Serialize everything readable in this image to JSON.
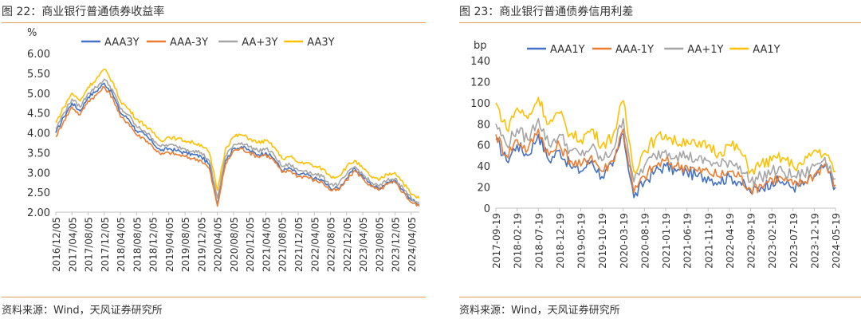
{
  "figures": [
    {
      "title": "图 22：商业银行普通债券收益率",
      "source": "资料来源：Wind，天风证券研究所"
    },
    {
      "title": "图 23：商业银行普通债券信用利差",
      "source": "资料来源：Wind，天风证券研究所"
    }
  ],
  "chart_data": [
    {
      "type": "line",
      "unit_label": "%",
      "ylim": [
        2.0,
        6.0
      ],
      "yticks": [
        "6.00",
        "5.50",
        "5.00",
        "4.50",
        "4.00",
        "3.50",
        "3.00",
        "2.50",
        "2.00"
      ],
      "grid": false,
      "legend_position": "top",
      "x": [
        "2016/12/05",
        "2017/02/05",
        "2017/04/05",
        "2017/06/05",
        "2017/08/05",
        "2017/10/05",
        "2017/12/05",
        "2018/02/05",
        "2018/04/05",
        "2018/06/05",
        "2018/08/05",
        "2018/10/05",
        "2018/12/05",
        "2019/02/05",
        "2019/04/05",
        "2019/06/05",
        "2019/08/05",
        "2019/10/05",
        "2019/12/05",
        "2020/02/05",
        "2020/04/05",
        "2020/06/05",
        "2020/08/05",
        "2020/10/05",
        "2020/12/05",
        "2021/02/05",
        "2021/04/05",
        "2021/06/05",
        "2021/08/05",
        "2021/10/05",
        "2021/12/05",
        "2022/02/05",
        "2022/04/05",
        "2022/06/05",
        "2022/08/05",
        "2022/10/05",
        "2022/12/05",
        "2023/02/05",
        "2023/04/05",
        "2023/06/05",
        "2023/08/05",
        "2023/10/05",
        "2023/12/05",
        "2024/02/05",
        "2024/04/05",
        "2024/05/05"
      ],
      "xtick_labels": [
        "2016/12/05",
        "2017/04/05",
        "2017/08/05",
        "2017/12/05",
        "2018/04/05",
        "2018/08/05",
        "2018/12/05",
        "2019/04/05",
        "2019/08/05",
        "2019/12/05",
        "2020/04/05",
        "2020/08/05",
        "2020/12/05",
        "2021/04/05",
        "2021/08/05",
        "2021/12/05",
        "2022/04/05",
        "2022/08/05",
        "2022/12/05",
        "2023/04/05",
        "2023/08/05",
        "2023/12/05",
        "2024/04/05"
      ],
      "series": [
        {
          "name": "AAA3Y",
          "color": "#4472c4",
          "values": [
            4.0,
            4.4,
            4.75,
            4.55,
            4.9,
            5.05,
            5.25,
            5.0,
            4.5,
            4.35,
            4.05,
            3.95,
            3.75,
            3.55,
            3.6,
            3.55,
            3.5,
            3.45,
            3.4,
            3.2,
            2.2,
            3.3,
            3.6,
            3.65,
            3.55,
            3.45,
            3.5,
            3.35,
            3.05,
            3.1,
            2.95,
            2.95,
            2.85,
            2.8,
            2.6,
            2.6,
            2.85,
            3.1,
            2.9,
            2.7,
            2.6,
            2.75,
            2.8,
            2.55,
            2.3,
            2.2
          ]
        },
        {
          "name": "AAA-3Y",
          "color": "#ed7d31",
          "values": [
            3.9,
            4.3,
            4.65,
            4.45,
            4.8,
            4.95,
            5.15,
            4.9,
            4.4,
            4.25,
            3.95,
            3.85,
            3.65,
            3.45,
            3.5,
            3.45,
            3.4,
            3.35,
            3.3,
            3.1,
            2.15,
            3.2,
            3.55,
            3.6,
            3.5,
            3.4,
            3.45,
            3.3,
            3.0,
            3.05,
            2.9,
            2.9,
            2.8,
            2.75,
            2.55,
            2.55,
            2.8,
            3.05,
            2.85,
            2.65,
            2.55,
            2.7,
            2.75,
            2.5,
            2.25,
            2.15
          ]
        },
        {
          "name": "AA+3Y",
          "color": "#a5a5a5",
          "values": [
            4.1,
            4.5,
            4.85,
            4.65,
            5.0,
            5.15,
            5.35,
            5.1,
            4.6,
            4.45,
            4.15,
            4.05,
            3.85,
            3.65,
            3.7,
            3.65,
            3.6,
            3.55,
            3.5,
            3.3,
            2.35,
            3.4,
            3.7,
            3.75,
            3.65,
            3.55,
            3.6,
            3.45,
            3.15,
            3.2,
            3.05,
            3.05,
            2.95,
            2.9,
            2.7,
            2.7,
            2.95,
            3.15,
            2.95,
            2.75,
            2.65,
            2.8,
            2.85,
            2.6,
            2.35,
            2.25
          ]
        },
        {
          "name": "AA3Y",
          "color": "#ffc000",
          "values": [
            4.25,
            4.65,
            5.0,
            4.8,
            5.15,
            5.35,
            5.6,
            5.3,
            4.8,
            4.6,
            4.35,
            4.2,
            4.0,
            3.8,
            3.9,
            3.85,
            3.8,
            3.75,
            3.7,
            3.5,
            2.55,
            3.6,
            3.9,
            3.95,
            3.85,
            3.75,
            3.8,
            3.65,
            3.35,
            3.4,
            3.25,
            3.25,
            3.15,
            3.1,
            2.9,
            2.9,
            3.15,
            3.3,
            3.1,
            2.9,
            2.8,
            2.95,
            3.0,
            2.75,
            2.45,
            2.35
          ]
        }
      ]
    },
    {
      "type": "line",
      "unit_label": "bp",
      "ylim": [
        0,
        140
      ],
      "yticks": [
        "140",
        "120",
        "100",
        "80",
        "60",
        "40",
        "20",
        "0"
      ],
      "grid": false,
      "legend_position": "top",
      "x": [
        "2017-09-19",
        "2017-12-19",
        "2018-02-19",
        "2018-04-19",
        "2018-07-19",
        "2018-09-19",
        "2018-12-19",
        "2019-02-19",
        "2019-05-19",
        "2019-07-19",
        "2019-10-19",
        "2019-12-19",
        "2020-03-19",
        "2020-05-19",
        "2020-08-19",
        "2020-10-19",
        "2021-01-19",
        "2021-03-19",
        "2021-06-19",
        "2021-08-19",
        "2021-11-19",
        "2022-01-19",
        "2022-04-19",
        "2022-06-19",
        "2022-09-19",
        "2022-11-19",
        "2023-02-19",
        "2023-04-19",
        "2023-07-19",
        "2023-09-19",
        "2023-12-19",
        "2024-02-19",
        "2024-05-19"
      ],
      "xtick_labels": [
        "2017-09-19",
        "2018-02-19",
        "2018-07-19",
        "2018-12-19",
        "2019-05-19",
        "2019-10-19",
        "2020-03-19",
        "2020-08-19",
        "2021-01-19",
        "2021-06-19",
        "2021-11-19",
        "2022-04-19",
        "2022-09-19",
        "2023-02-19",
        "2023-07-19",
        "2023-12-19",
        "2024-05-19"
      ],
      "series": [
        {
          "name": "AAA1Y",
          "color": "#4472c4",
          "values": [
            65,
            45,
            60,
            50,
            70,
            45,
            55,
            40,
            35,
            45,
            30,
            40,
            70,
            10,
            25,
            35,
            40,
            35,
            35,
            30,
            30,
            25,
            30,
            25,
            15,
            20,
            25,
            25,
            20,
            22,
            30,
            40,
            20
          ]
        },
        {
          "name": "AAA-1Y",
          "color": "#ed7d31",
          "values": [
            70,
            50,
            65,
            55,
            75,
            50,
            60,
            45,
            40,
            50,
            35,
            45,
            75,
            15,
            30,
            40,
            45,
            40,
            40,
            35,
            35,
            30,
            35,
            30,
            18,
            22,
            28,
            28,
            22,
            25,
            32,
            42,
            22
          ]
        },
        {
          "name": "AA+1Y",
          "color": "#a5a5a5",
          "values": [
            80,
            60,
            75,
            65,
            85,
            60,
            70,
            55,
            50,
            58,
            45,
            55,
            85,
            25,
            40,
            50,
            55,
            50,
            50,
            45,
            45,
            40,
            45,
            40,
            25,
            30,
            35,
            35,
            30,
            32,
            40,
            48,
            28
          ]
        },
        {
          "name": "AA1Y",
          "color": "#ffc000",
          "values": [
            100,
            75,
            95,
            85,
            105,
            80,
            90,
            70,
            65,
            75,
            60,
            68,
            102,
            35,
            55,
            65,
            70,
            62,
            65,
            58,
            60,
            52,
            60,
            55,
            35,
            42,
            45,
            48,
            40,
            42,
            55,
            52,
            35
          ]
        }
      ]
    }
  ]
}
